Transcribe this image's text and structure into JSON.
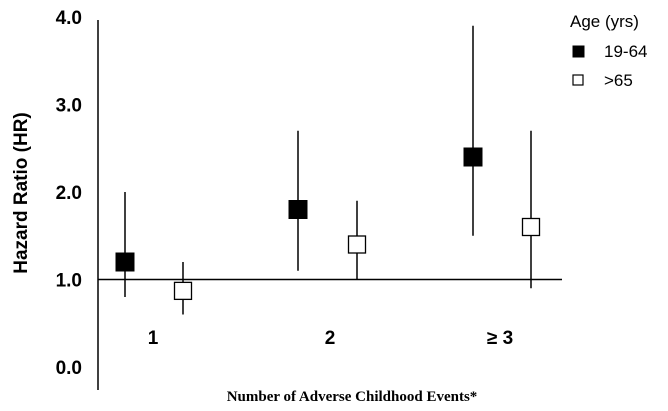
{
  "chart_data": {
    "type": "scatter",
    "subtype": "point-estimate-with-confidence-interval",
    "title": "",
    "xlabel": "Number of Adverse Childhood Events*",
    "ylabel": "Hazard Ratio (HR)",
    "ylim": [
      0.0,
      4.0
    ],
    "yticks": [
      "0.0",
      "1.0",
      "2.0",
      "3.0",
      "4.0"
    ],
    "reference_line": 1.0,
    "categories": [
      "1",
      "2",
      "≥ 3"
    ],
    "legend": {
      "title": "Age (yrs)",
      "placement": "top-right"
    },
    "series": [
      {
        "name": "19-64",
        "marker": "filled-square",
        "color": "#000000",
        "values": [
          1.2,
          1.8,
          2.4
        ],
        "lower": [
          0.8,
          1.1,
          1.5
        ],
        "upper": [
          2.0,
          2.7,
          3.9
        ]
      },
      {
        "name": ">65",
        "marker": "open-square",
        "color": "#ffffff",
        "values": [
          0.87,
          1.4,
          1.6
        ],
        "lower": [
          0.6,
          1.0,
          0.9
        ],
        "upper": [
          1.2,
          1.9,
          2.7
        ]
      }
    ]
  }
}
